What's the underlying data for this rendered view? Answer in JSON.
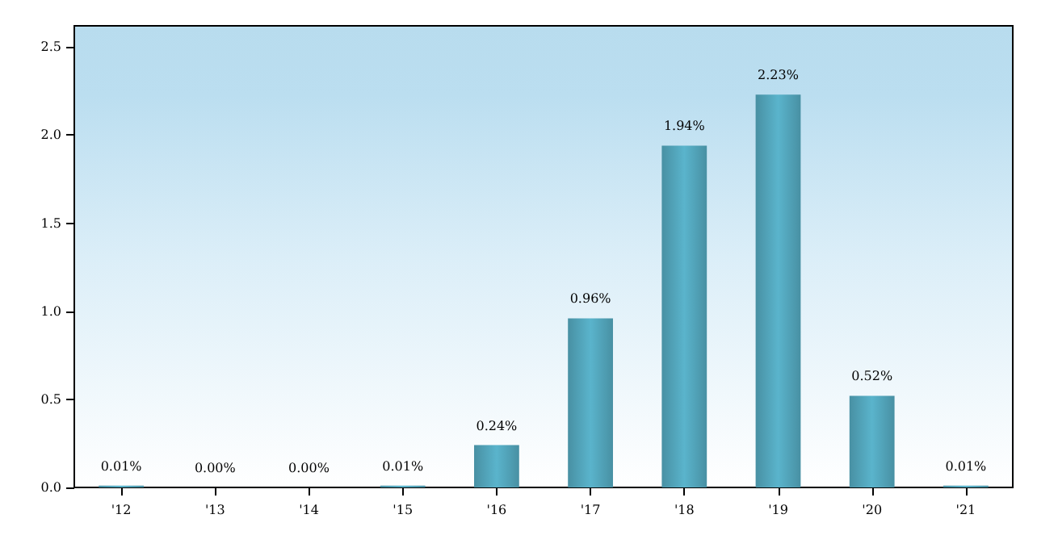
{
  "chart_data": {
    "type": "bar",
    "categories": [
      "'12",
      "'13",
      "'14",
      "'15",
      "'16",
      "'17",
      "'18",
      "'19",
      "'20",
      "'21"
    ],
    "values": [
      0.01,
      0,
      0,
      0.01,
      0.24,
      0.96,
      1.94,
      2.23,
      0.52,
      0.01
    ],
    "value_labels": [
      "0.01%",
      "0.00%",
      "0.00%",
      "0.01%",
      "0.24%",
      "0.96%",
      "1.94%",
      "2.23%",
      "0.52%",
      "0.01%"
    ],
    "color": "#5ab4cc",
    "ylim": [
      0,
      2.62
    ],
    "yticks": [
      {
        "value": 0,
        "label": "0.0"
      },
      0.5,
      {
        "value": 1,
        "label": "1.0"
      },
      1.5,
      {
        "value": 2,
        "label": "2.0"
      },
      2.5
    ],
    "grid": false
  }
}
